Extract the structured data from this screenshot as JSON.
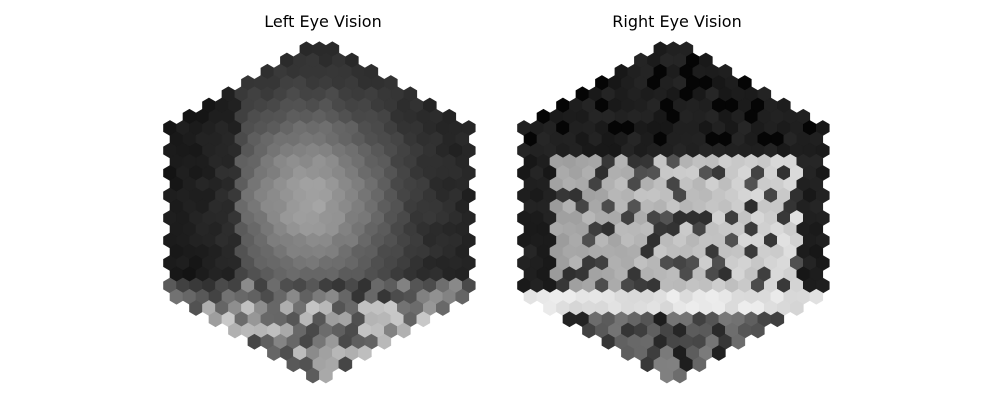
{
  "chart_data": [
    {
      "type": "heatmap",
      "subtype": "hexagonal",
      "title": "Left Eye Vision",
      "colormap": "gray",
      "axes_visible": false,
      "grid": false,
      "value_range": [
        0,
        1
      ],
      "features": {
        "background_level": 0.13,
        "bright_spot": {
          "u": 0.46,
          "v": 0.47,
          "peak": 0.5,
          "spread": 0.2
        },
        "dark_left_band": {
          "u_max": 0.22,
          "level": 0.03
        },
        "bright_lower_region": {
          "v_min": 0.78,
          "level": 0.8,
          "noise": 0.6
        }
      }
    },
    {
      "type": "heatmap",
      "subtype": "hexagonal",
      "title": "Right Eye Vision",
      "colormap": "gray",
      "axes_visible": false,
      "grid": false,
      "value_range": [
        0,
        1
      ],
      "features": {
        "background_level": 0.12,
        "bright_central_band": {
          "v_min": 0.33,
          "v_max": 0.78,
          "level": 0.82
        },
        "bright_strip": {
          "v": 0.76,
          "level": 0.93
        },
        "dark_mottle": {
          "probability": 0.25,
          "level": 0.18
        }
      }
    }
  ]
}
